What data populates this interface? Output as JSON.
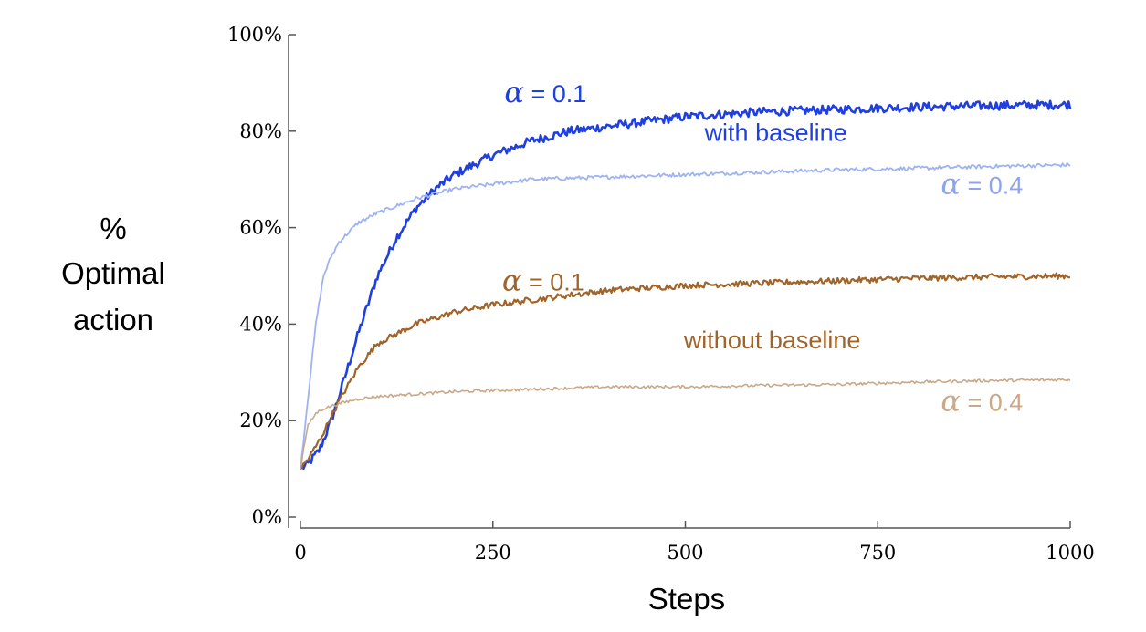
{
  "chart_data": {
    "type": "line",
    "title": "",
    "xlabel": "Steps",
    "ylabel_lines": [
      "%",
      "Optimal",
      "action"
    ],
    "xlim": [
      0,
      1000
    ],
    "ylim": [
      0,
      100
    ],
    "x_ticks": [
      0,
      250,
      500,
      750,
      1000
    ],
    "x_tick_labels": [
      "0",
      "250",
      "500",
      "750",
      "1000"
    ],
    "y_ticks": [
      0,
      20,
      40,
      60,
      80,
      100
    ],
    "y_tick_labels": [
      "0%",
      "20%",
      "40%",
      "60%",
      "80%",
      "100%"
    ],
    "grid": false,
    "legend": "none",
    "series": [
      {
        "color": "#1f3fe0",
        "stroke_width": 2.6,
        "noise": 0.9,
        "x": [
          0,
          10,
          25,
          40,
          50,
          75,
          100,
          125,
          150,
          175,
          200,
          250,
          300,
          350,
          400,
          500,
          600,
          700,
          800,
          900,
          1000
        ],
        "y": [
          10,
          11,
          14,
          20,
          25,
          38,
          50,
          58,
          64,
          68,
          71,
          75,
          78,
          80,
          81,
          83,
          84,
          84.5,
          85,
          85.3,
          85.5
        ]
      },
      {
        "color": "#9fb3f2",
        "stroke_width": 1.8,
        "noise": 0.4,
        "x": [
          0,
          10,
          20,
          30,
          40,
          50,
          75,
          100,
          150,
          200,
          300,
          400,
          500,
          600,
          700,
          800,
          900,
          1000
        ],
        "y": [
          10,
          25,
          40,
          50,
          54,
          57,
          61,
          63,
          66,
          68,
          70,
          70.5,
          71,
          71.5,
          72,
          72.3,
          72.7,
          73
        ]
      },
      {
        "color": "#a0642a",
        "stroke_width": 2.2,
        "noise": 0.6,
        "x": [
          0,
          10,
          25,
          50,
          75,
          100,
          150,
          200,
          250,
          300,
          400,
          500,
          600,
          700,
          800,
          900,
          1000
        ],
        "y": [
          10,
          12,
          16,
          24,
          31,
          36,
          40,
          42.5,
          44,
          45,
          47,
          48,
          48.5,
          49,
          49.5,
          49.8,
          50
        ]
      },
      {
        "color": "#c9a987",
        "stroke_width": 1.6,
        "noise": 0.3,
        "x": [
          0,
          5,
          10,
          20,
          30,
          50,
          75,
          100,
          150,
          200,
          300,
          400,
          500,
          600,
          700,
          800,
          900,
          1000
        ],
        "y": [
          10,
          15,
          19,
          21.5,
          22.5,
          23.5,
          24.5,
          25,
          25.5,
          26,
          26.5,
          27,
          27,
          27.3,
          27.5,
          28,
          28.3,
          28.5
        ]
      }
    ],
    "annotations": [
      {
        "alpha_symbol": "α",
        "text": " = 0.1",
        "color": "#1f3fe0",
        "x": 265,
        "y": 86
      },
      {
        "text": "with baseline",
        "color": "#1f3fe0",
        "x": 525,
        "y": 78
      },
      {
        "alpha_symbol": "α",
        "text": " = 0.4",
        "color": "#8fa4ee",
        "x": 832,
        "y": 67
      },
      {
        "alpha_symbol": "α",
        "text": " = 0.1",
        "color": "#a0642a",
        "x": 262,
        "y": 47
      },
      {
        "text": "without baseline",
        "color": "#a0642a",
        "x": 498,
        "y": 35
      },
      {
        "alpha_symbol": "α",
        "text": " = 0.4",
        "color": "#c9a987",
        "x": 832,
        "y": 22
      }
    ]
  }
}
